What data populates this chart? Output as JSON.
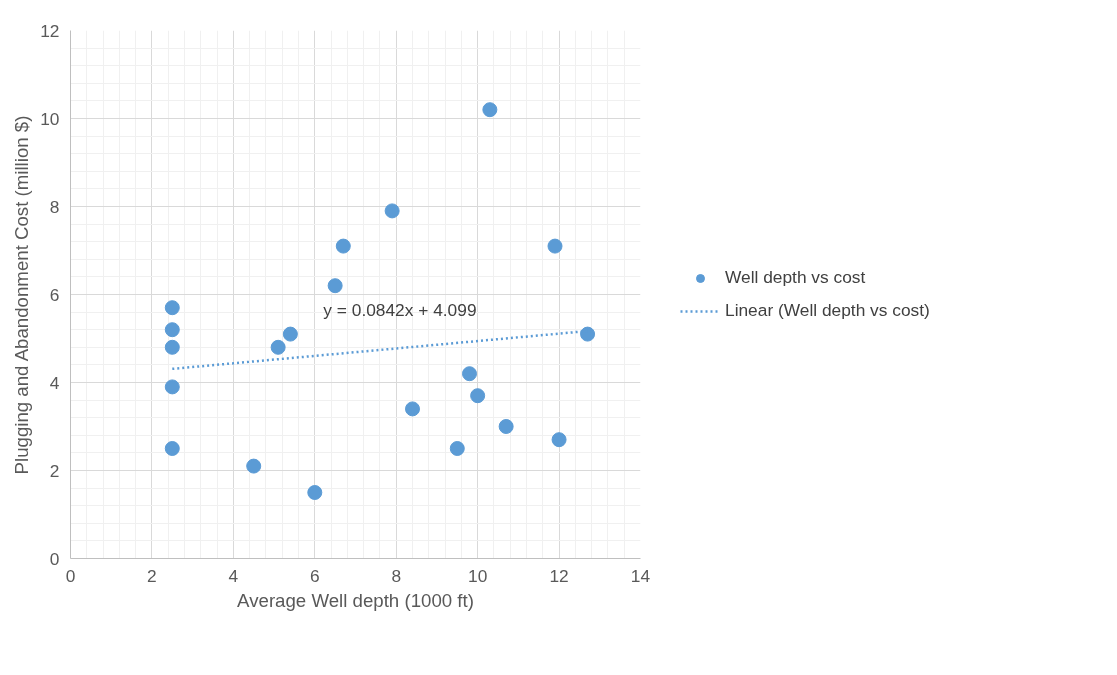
{
  "chart_data": {
    "type": "scatter",
    "xlabel": "Average Well depth (1000 ft)",
    "ylabel": "Plugging and Abandonment Cost (million $)",
    "xlim": [
      0,
      14
    ],
    "xticks": [
      0,
      2,
      4,
      6,
      8,
      10,
      12,
      14
    ],
    "ylim": [
      0,
      12
    ],
    "yticks": [
      0,
      2,
      4,
      6,
      8,
      10,
      12
    ],
    "grid": true,
    "legend": "right",
    "series": [
      {
        "name": "Well depth vs cost",
        "marker": "circle",
        "color": "#5b9bd5",
        "x": [
          2.5,
          2.5,
          2.5,
          2.5,
          2.5,
          4.5,
          5.1,
          5.4,
          6.0,
          6.5,
          6.7,
          7.9,
          8.4,
          9.5,
          9.8,
          10.0,
          10.3,
          10.7,
          11.9,
          12.0,
          12.7
        ],
        "values": [
          5.7,
          5.2,
          4.8,
          3.9,
          2.5,
          2.1,
          4.8,
          5.1,
          1.5,
          6.2,
          7.1,
          7.9,
          3.4,
          2.5,
          4.2,
          3.7,
          10.2,
          3.0,
          7.1,
          2.7,
          5.1
        ]
      },
      {
        "name": "Linear (Well depth vs cost)",
        "type": "line",
        "line_style": "dotted",
        "color": "#5b9bd5",
        "x": [
          2.5,
          12.7
        ],
        "values": [
          4.31,
          5.17
        ]
      }
    ],
    "annotations": [
      "y = 0.0842x + 4.099"
    ]
  }
}
